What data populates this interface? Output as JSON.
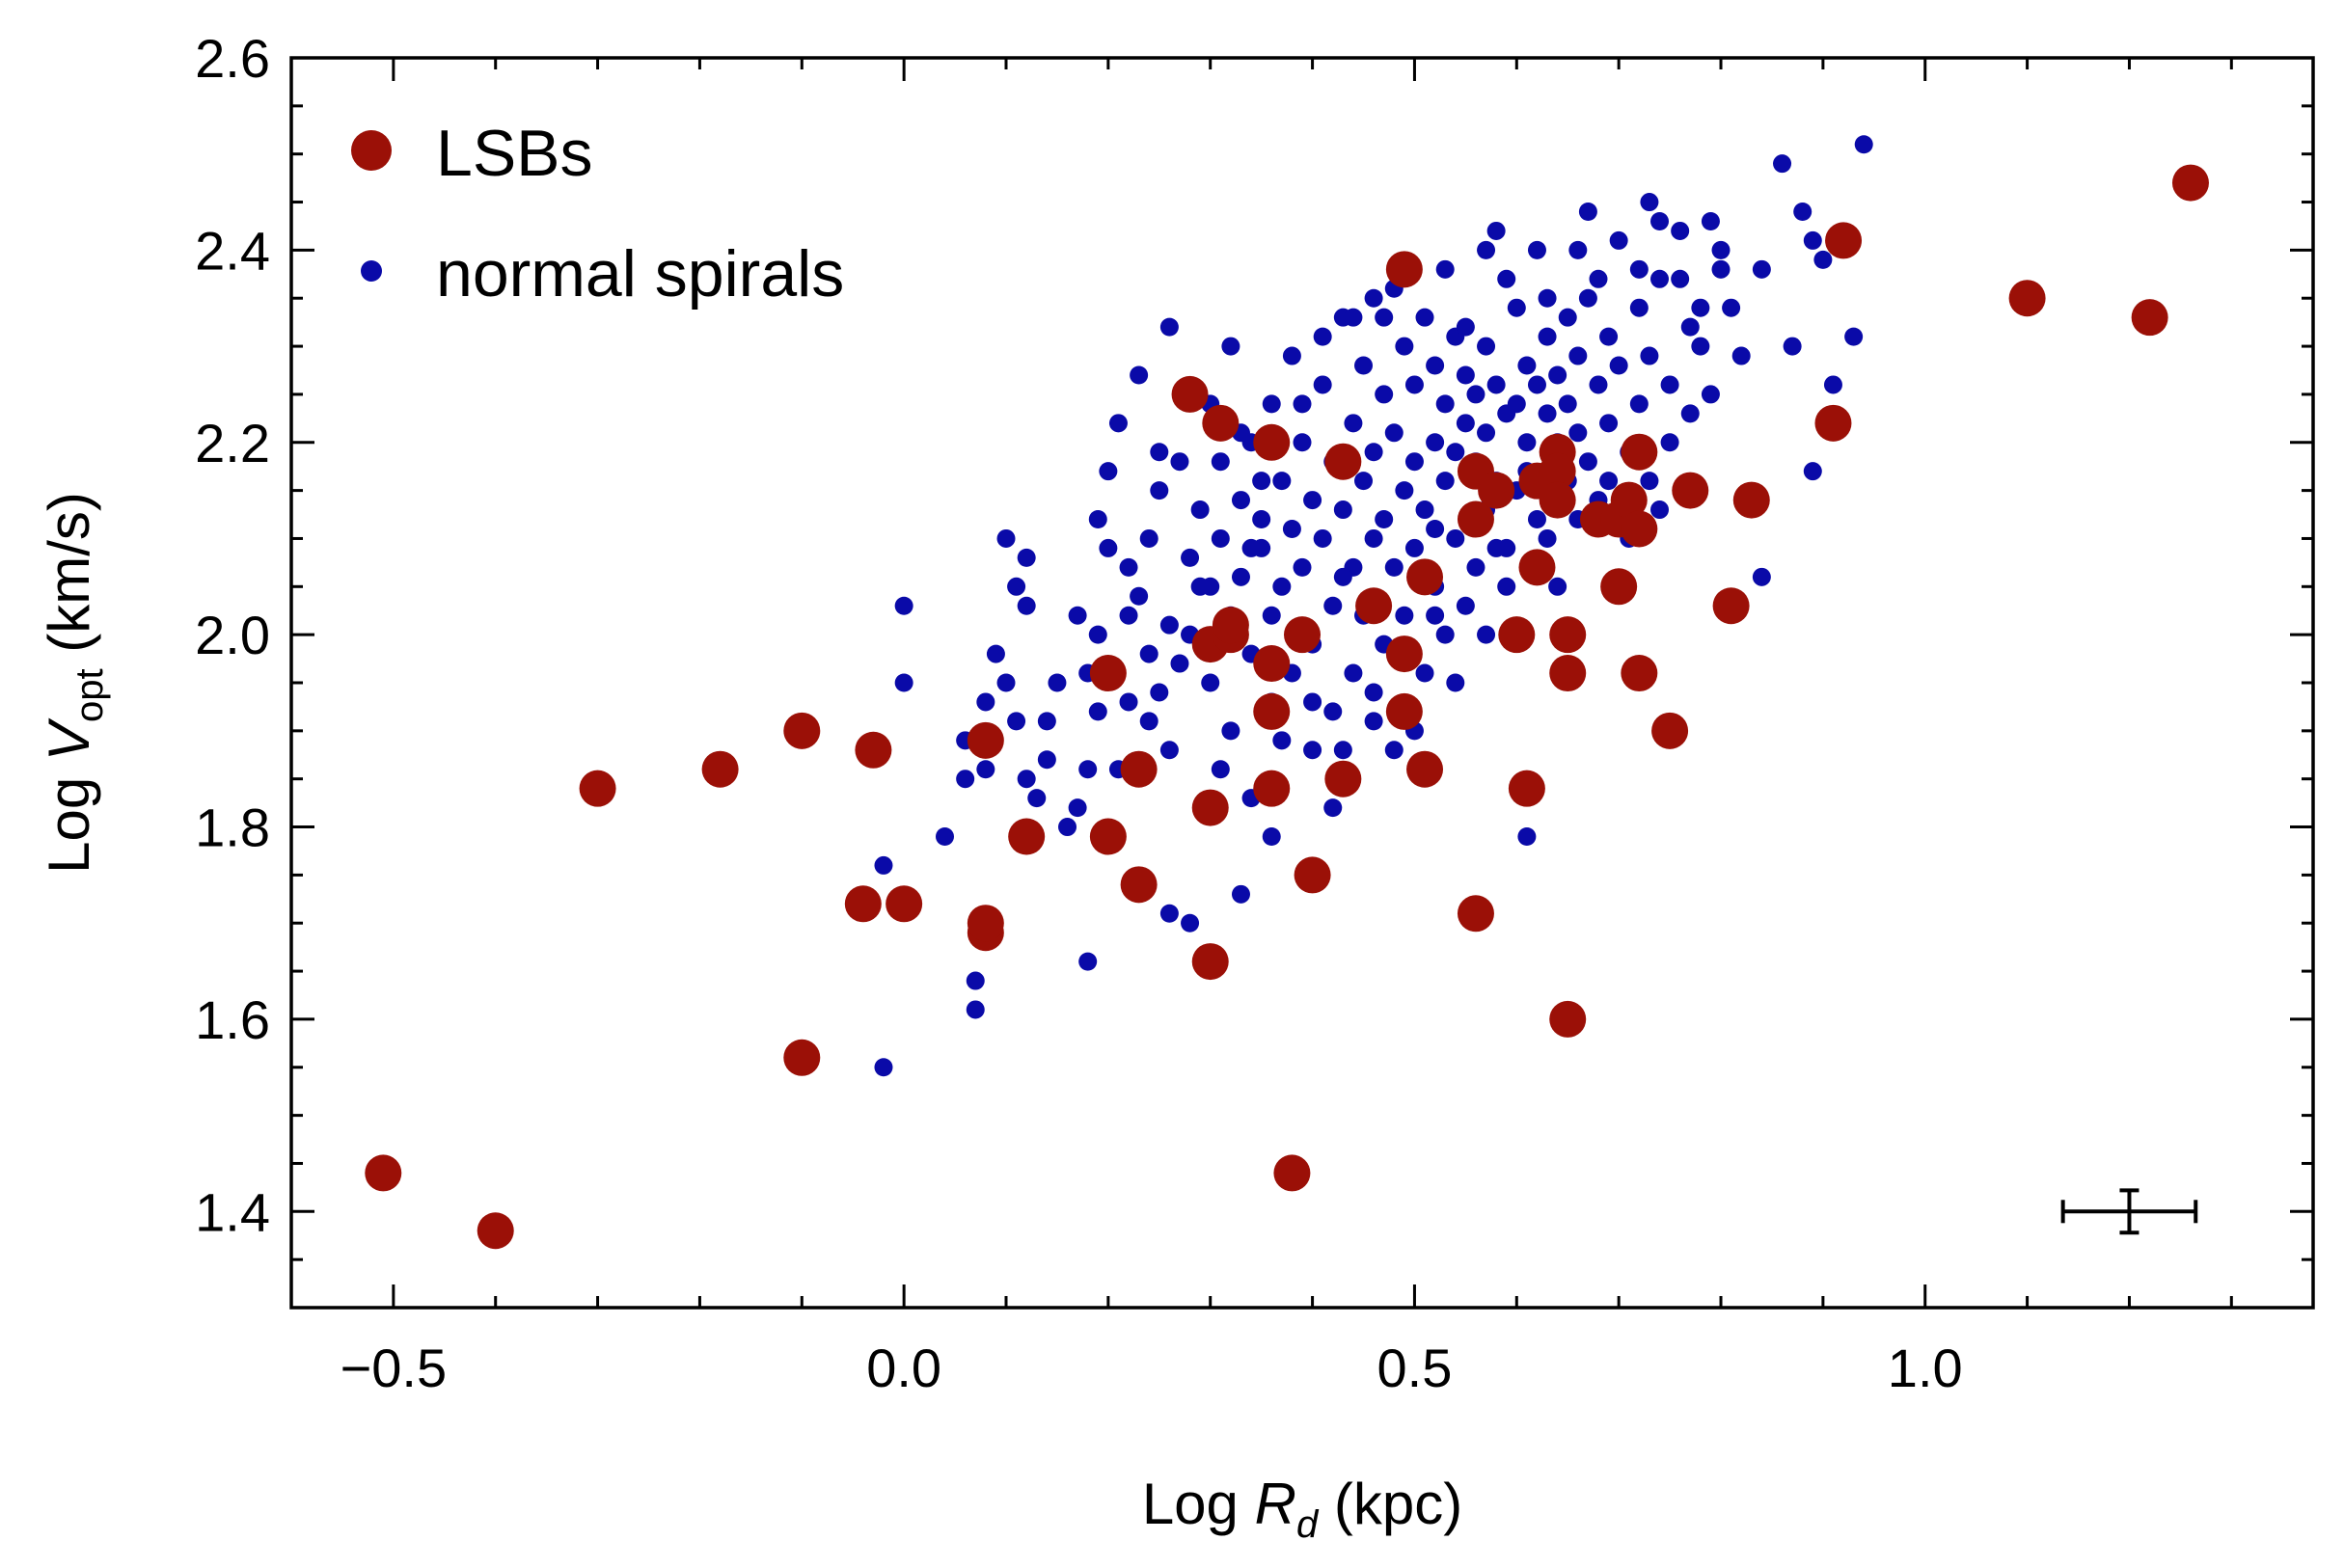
{
  "chart_data": {
    "type": "scatter",
    "xlabel": {
      "prefix": "Log ",
      "var": "R",
      "sub": "d",
      "unit": " (kpc)"
    },
    "ylabel": {
      "prefix": "Log ",
      "var": "V",
      "sub": "opt",
      "unit": " (km/s)"
    },
    "xlim": [
      -0.6,
      1.38
    ],
    "ylim": [
      1.3,
      2.6
    ],
    "x_ticks": [
      -0.5,
      0.0,
      0.5,
      1.0
    ],
    "x_tick_labels": [
      "−0.5",
      "0.0",
      "0.5",
      "1.0"
    ],
    "y_ticks": [
      1.4,
      1.6,
      1.8,
      2.0,
      2.2,
      2.4,
      2.6
    ],
    "y_tick_labels": [
      "1.4",
      "1.6",
      "1.8",
      "2.0",
      "2.2",
      "2.4",
      "2.6"
    ],
    "grid": false,
    "legend_position": "top-left",
    "error_bar": {
      "x": 1.2,
      "y": 1.4,
      "xerr": 0.065,
      "yerr": 0.022
    },
    "colors": {
      "LSBs": "#9b1007",
      "normal spirals": "#0a0aa8",
      "axis": "#000000"
    },
    "series": [
      {
        "name": "LSBs",
        "points": [
          [
            -0.51,
            1.44
          ],
          [
            -0.4,
            1.38
          ],
          [
            -0.3,
            1.84
          ],
          [
            -0.18,
            1.86
          ],
          [
            -0.1,
            1.9
          ],
          [
            -0.1,
            1.56
          ],
          [
            -0.03,
            1.88
          ],
          [
            -0.04,
            1.72
          ],
          [
            0.0,
            1.72
          ],
          [
            0.08,
            1.89
          ],
          [
            0.08,
            1.69
          ],
          [
            0.08,
            1.7
          ],
          [
            0.12,
            1.79
          ],
          [
            0.2,
            1.96
          ],
          [
            0.2,
            1.79
          ],
          [
            0.23,
            1.86
          ],
          [
            0.23,
            1.74
          ],
          [
            0.28,
            2.25
          ],
          [
            0.31,
            2.22
          ],
          [
            0.3,
            1.99
          ],
          [
            0.32,
            2.0
          ],
          [
            0.32,
            2.01
          ],
          [
            0.3,
            1.82
          ],
          [
            0.3,
            1.66
          ],
          [
            0.36,
            2.2
          ],
          [
            0.36,
            1.97
          ],
          [
            0.36,
            1.92
          ],
          [
            0.36,
            1.84
          ],
          [
            0.39,
            2.0
          ],
          [
            0.4,
            1.75
          ],
          [
            0.38,
            1.44
          ],
          [
            0.43,
            2.18
          ],
          [
            0.43,
            1.85
          ],
          [
            0.46,
            2.03
          ],
          [
            0.49,
            2.38
          ],
          [
            0.49,
            1.98
          ],
          [
            0.49,
            1.92
          ],
          [
            0.51,
            2.06
          ],
          [
            0.51,
            1.86
          ],
          [
            0.56,
            2.17
          ],
          [
            0.56,
            2.12
          ],
          [
            0.56,
            1.71
          ],
          [
            0.58,
            2.15
          ],
          [
            0.6,
            2.0
          ],
          [
            0.61,
            1.84
          ],
          [
            0.62,
            2.16
          ],
          [
            0.62,
            2.07
          ],
          [
            0.64,
            2.19
          ],
          [
            0.64,
            2.17
          ],
          [
            0.64,
            2.14
          ],
          [
            0.65,
            2.0
          ],
          [
            0.65,
            1.96
          ],
          [
            0.65,
            1.6
          ],
          [
            0.68,
            2.12
          ],
          [
            0.7,
            2.12
          ],
          [
            0.7,
            2.05
          ],
          [
            0.71,
            2.14
          ],
          [
            0.72,
            2.19
          ],
          [
            0.72,
            2.11
          ],
          [
            0.72,
            1.96
          ],
          [
            0.75,
            1.9
          ],
          [
            0.77,
            2.15
          ],
          [
            0.81,
            2.03
          ],
          [
            0.83,
            2.14
          ],
          [
            0.91,
            2.22
          ],
          [
            0.92,
            2.41
          ],
          [
            1.1,
            2.35
          ],
          [
            1.22,
            2.33
          ],
          [
            1.26,
            2.47
          ]
        ]
      },
      {
        "name": "normal spirals",
        "points": [
          [
            -0.02,
            1.55
          ],
          [
            0.0,
            2.03
          ],
          [
            0.0,
            1.95
          ],
          [
            -0.02,
            1.76
          ],
          [
            0.04,
            1.79
          ],
          [
            0.06,
            1.89
          ],
          [
            0.07,
            1.64
          ],
          [
            0.07,
            1.61
          ],
          [
            0.08,
            1.93
          ],
          [
            0.08,
            1.86
          ],
          [
            0.1,
            2.1
          ],
          [
            0.1,
            1.95
          ],
          [
            0.11,
            2.05
          ],
          [
            0.11,
            1.91
          ],
          [
            0.12,
            2.03
          ],
          [
            0.12,
            1.85
          ],
          [
            0.12,
            2.08
          ],
          [
            0.14,
            1.87
          ],
          [
            0.14,
            1.91
          ],
          [
            0.16,
            1.8
          ],
          [
            0.17,
            1.82
          ],
          [
            0.18,
            1.86
          ],
          [
            0.18,
            1.96
          ],
          [
            0.18,
            1.66
          ],
          [
            0.19,
            2.0
          ],
          [
            0.2,
            2.09
          ],
          [
            0.2,
            2.17
          ],
          [
            0.21,
            2.22
          ],
          [
            0.22,
            2.02
          ],
          [
            0.22,
            1.93
          ],
          [
            0.23,
            2.04
          ],
          [
            0.23,
            2.27
          ],
          [
            0.24,
            2.1
          ],
          [
            0.24,
            1.98
          ],
          [
            0.25,
            2.15
          ],
          [
            0.25,
            1.94
          ],
          [
            0.26,
            2.01
          ],
          [
            0.26,
            1.71
          ],
          [
            0.27,
            2.18
          ],
          [
            0.28,
            2.08
          ],
          [
            0.28,
            2.0
          ],
          [
            0.28,
            1.7
          ],
          [
            0.29,
            2.13
          ],
          [
            0.3,
            2.24
          ],
          [
            0.3,
            2.05
          ],
          [
            0.3,
            1.95
          ],
          [
            0.31,
            2.18
          ],
          [
            0.31,
            2.1
          ],
          [
            0.32,
            2.3
          ],
          [
            0.32,
            2.02
          ],
          [
            0.32,
            1.9
          ],
          [
            0.33,
            2.14
          ],
          [
            0.33,
            2.06
          ],
          [
            0.34,
            2.2
          ],
          [
            0.34,
            1.98
          ],
          [
            0.34,
            1.83
          ],
          [
            0.35,
            2.12
          ],
          [
            0.35,
            2.09
          ],
          [
            0.36,
            2.24
          ],
          [
            0.36,
            2.02
          ],
          [
            0.36,
            1.93
          ],
          [
            0.37,
            2.16
          ],
          [
            0.37,
            2.05
          ],
          [
            0.38,
            2.29
          ],
          [
            0.38,
            2.11
          ],
          [
            0.38,
            1.96
          ],
          [
            0.39,
            2.2
          ],
          [
            0.39,
            2.07
          ],
          [
            0.4,
            2.14
          ],
          [
            0.4,
            1.99
          ],
          [
            0.4,
            1.88
          ],
          [
            0.41,
            2.26
          ],
          [
            0.41,
            2.1
          ],
          [
            0.42,
            2.18
          ],
          [
            0.42,
            2.03
          ],
          [
            0.42,
            1.92
          ],
          [
            0.43,
            2.33
          ],
          [
            0.43,
            2.13
          ],
          [
            0.44,
            2.22
          ],
          [
            0.44,
            2.07
          ],
          [
            0.44,
            1.96
          ],
          [
            0.45,
            2.28
          ],
          [
            0.45,
            2.16
          ],
          [
            0.45,
            2.02
          ],
          [
            0.46,
            2.35
          ],
          [
            0.46,
            2.19
          ],
          [
            0.46,
            2.1
          ],
          [
            0.46,
            1.91
          ],
          [
            0.47,
            2.25
          ],
          [
            0.47,
            2.12
          ],
          [
            0.47,
            1.99
          ],
          [
            0.48,
            2.36
          ],
          [
            0.48,
            2.21
          ],
          [
            0.48,
            2.07
          ],
          [
            0.48,
            1.88
          ],
          [
            0.49,
            2.3
          ],
          [
            0.49,
            2.15
          ],
          [
            0.49,
            2.02
          ],
          [
            0.5,
            2.26
          ],
          [
            0.5,
            2.18
          ],
          [
            0.5,
            2.09
          ],
          [
            0.51,
            2.33
          ],
          [
            0.51,
            2.13
          ],
          [
            0.51,
            1.96
          ],
          [
            0.52,
            2.28
          ],
          [
            0.52,
            2.2
          ],
          [
            0.52,
            2.05
          ],
          [
            0.53,
            2.24
          ],
          [
            0.53,
            2.16
          ],
          [
            0.53,
            2.0
          ],
          [
            0.54,
            2.31
          ],
          [
            0.54,
            2.19
          ],
          [
            0.54,
            2.1
          ],
          [
            0.55,
            2.27
          ],
          [
            0.55,
            2.22
          ],
          [
            0.55,
            2.03
          ],
          [
            0.56,
            2.25
          ],
          [
            0.56,
            2.18
          ],
          [
            0.56,
            2.07
          ],
          [
            0.57,
            2.3
          ],
          [
            0.57,
            2.21
          ],
          [
            0.57,
            2.13
          ],
          [
            0.58,
            2.42
          ],
          [
            0.58,
            2.26
          ],
          [
            0.58,
            2.16
          ],
          [
            0.59,
            2.23
          ],
          [
            0.59,
            2.09
          ],
          [
            0.6,
            2.34
          ],
          [
            0.6,
            2.24
          ],
          [
            0.6,
            2.15
          ],
          [
            0.61,
            2.28
          ],
          [
            0.61,
            2.2
          ],
          [
            0.61,
            1.79
          ],
          [
            0.62,
            2.4
          ],
          [
            0.62,
            2.26
          ],
          [
            0.62,
            2.12
          ],
          [
            0.63,
            2.31
          ],
          [
            0.63,
            2.23
          ],
          [
            0.63,
            2.1
          ],
          [
            0.64,
            2.27
          ],
          [
            0.64,
            2.2
          ],
          [
            0.64,
            2.05
          ],
          [
            0.65,
            2.33
          ],
          [
            0.65,
            2.24
          ],
          [
            0.65,
            2.16
          ],
          [
            0.66,
            2.29
          ],
          [
            0.66,
            2.21
          ],
          [
            0.67,
            2.44
          ],
          [
            0.67,
            2.35
          ],
          [
            0.67,
            2.18
          ],
          [
            0.68,
            2.26
          ],
          [
            0.68,
            2.14
          ],
          [
            0.69,
            2.31
          ],
          [
            0.69,
            2.22
          ],
          [
            0.7,
            2.41
          ],
          [
            0.7,
            2.28
          ],
          [
            0.71,
            2.19
          ],
          [
            0.71,
            2.1
          ],
          [
            0.72,
            2.34
          ],
          [
            0.72,
            2.24
          ],
          [
            0.73,
            2.29
          ],
          [
            0.73,
            2.16
          ],
          [
            0.74,
            2.43
          ],
          [
            0.74,
            2.37
          ],
          [
            0.75,
            2.26
          ],
          [
            0.75,
            2.2
          ],
          [
            0.76,
            2.37
          ],
          [
            0.77,
            2.32
          ],
          [
            0.77,
            2.23
          ],
          [
            0.78,
            2.3
          ],
          [
            0.79,
            2.25
          ],
          [
            0.79,
            2.43
          ],
          [
            0.8,
            2.38
          ],
          [
            0.81,
            2.34
          ],
          [
            0.82,
            2.29
          ],
          [
            0.84,
            2.38
          ],
          [
            0.84,
            2.06
          ],
          [
            0.86,
            2.49
          ],
          [
            0.87,
            2.3
          ],
          [
            0.88,
            2.44
          ],
          [
            0.89,
            2.41
          ],
          [
            0.89,
            2.17
          ],
          [
            0.9,
            2.39
          ],
          [
            0.91,
            2.26
          ],
          [
            0.93,
            2.31
          ],
          [
            0.94,
            2.51
          ],
          [
            0.26,
            2.32
          ],
          [
            0.33,
            2.21
          ],
          [
            0.39,
            2.24
          ],
          [
            0.41,
            2.31
          ],
          [
            0.44,
            2.33
          ],
          [
            0.47,
            2.33
          ],
          [
            0.53,
            2.38
          ],
          [
            0.55,
            2.32
          ],
          [
            0.57,
            2.4
          ],
          [
            0.59,
            2.37
          ],
          [
            0.63,
            2.35
          ],
          [
            0.66,
            2.4
          ],
          [
            0.68,
            2.37
          ],
          [
            0.72,
            2.38
          ],
          [
            0.76,
            2.42
          ],
          [
            0.78,
            2.34
          ],
          [
            0.73,
            2.45
          ],
          [
            0.8,
            2.4
          ],
          [
            0.35,
            2.16
          ],
          [
            0.43,
            2.06
          ],
          [
            0.52,
            2.11
          ],
          [
            0.58,
            2.09
          ],
          [
            0.61,
            2.17
          ],
          [
            0.66,
            2.12
          ],
          [
            0.69,
            2.16
          ],
          [
            0.74,
            2.13
          ],
          [
            0.46,
            1.94
          ],
          [
            0.5,
            1.9
          ],
          [
            0.4,
            1.93
          ],
          [
            0.37,
            1.89
          ],
          [
            0.43,
            1.88
          ],
          [
            0.52,
            2.02
          ],
          [
            0.54,
            1.95
          ],
          [
            0.57,
            2.0
          ],
          [
            0.59,
            2.05
          ],
          [
            0.34,
            2.09
          ],
          [
            0.29,
            2.05
          ],
          [
            0.27,
            1.97
          ],
          [
            0.24,
            1.91
          ],
          [
            0.21,
            1.86
          ],
          [
            0.15,
            1.95
          ],
          [
            0.09,
            1.98
          ],
          [
            0.06,
            1.85
          ],
          [
            0.13,
            1.83
          ],
          [
            0.26,
            1.88
          ],
          [
            0.31,
            1.86
          ],
          [
            0.36,
            1.79
          ],
          [
            0.42,
            1.82
          ],
          [
            0.33,
            1.73
          ],
          [
            0.19,
            1.92
          ],
          [
            0.17,
            2.02
          ],
          [
            0.22,
            2.07
          ],
          [
            0.25,
            2.19
          ],
          [
            0.19,
            2.12
          ]
        ]
      }
    ],
    "legend": [
      {
        "series": "LSBs",
        "label": "LSBs"
      },
      {
        "series": "normal spirals",
        "label": "normal spirals"
      }
    ]
  }
}
